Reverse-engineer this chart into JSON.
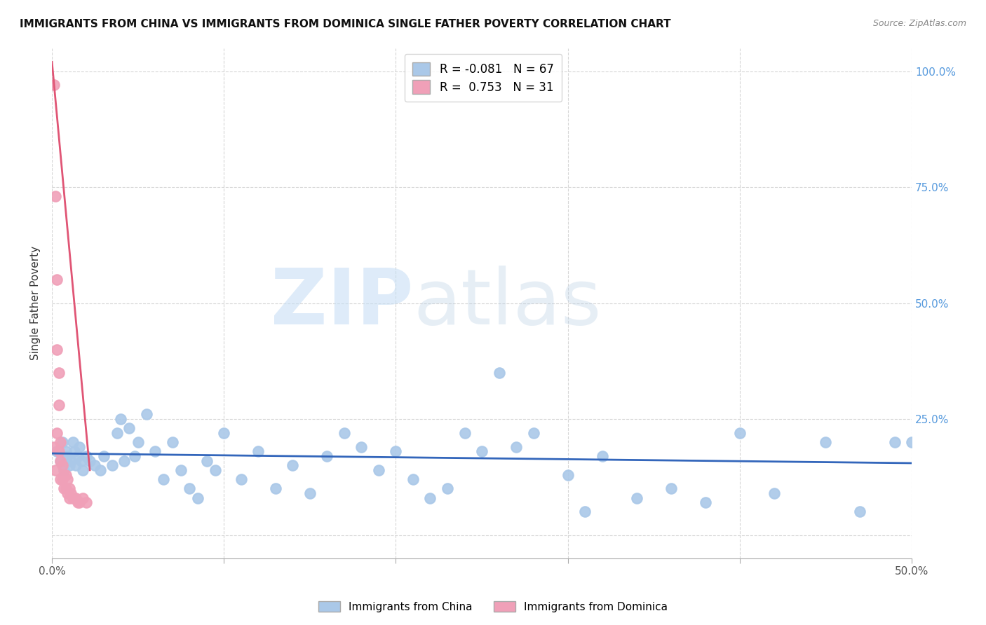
{
  "title": "IMMIGRANTS FROM CHINA VS IMMIGRANTS FROM DOMINICA SINGLE FATHER POVERTY CORRELATION CHART",
  "source": "Source: ZipAtlas.com",
  "ylabel": "Single Father Poverty",
  "xlim": [
    0.0,
    0.5
  ],
  "ylim": [
    -0.05,
    1.05
  ],
  "legend_r_china": "-0.081",
  "legend_n_china": "67",
  "legend_r_dominica": "0.753",
  "legend_n_dominica": "31",
  "china_color": "#aac8e8",
  "dominica_color": "#f0a0b8",
  "china_line_color": "#3366bb",
  "dominica_line_color": "#e05575",
  "china_x": [
    0.003,
    0.005,
    0.006,
    0.007,
    0.008,
    0.009,
    0.01,
    0.011,
    0.012,
    0.013,
    0.014,
    0.015,
    0.016,
    0.017,
    0.018,
    0.02,
    0.022,
    0.025,
    0.028,
    0.03,
    0.035,
    0.038,
    0.04,
    0.042,
    0.045,
    0.048,
    0.05,
    0.055,
    0.06,
    0.065,
    0.07,
    0.075,
    0.08,
    0.085,
    0.09,
    0.095,
    0.1,
    0.11,
    0.12,
    0.13,
    0.14,
    0.15,
    0.16,
    0.17,
    0.18,
    0.19,
    0.2,
    0.21,
    0.22,
    0.23,
    0.24,
    0.25,
    0.26,
    0.27,
    0.28,
    0.3,
    0.31,
    0.32,
    0.34,
    0.36,
    0.38,
    0.4,
    0.42,
    0.45,
    0.47,
    0.49,
    0.5
  ],
  "china_y": [
    0.18,
    0.16,
    0.2,
    0.14,
    0.18,
    0.17,
    0.15,
    0.16,
    0.2,
    0.18,
    0.15,
    0.17,
    0.19,
    0.16,
    0.14,
    0.17,
    0.16,
    0.15,
    0.14,
    0.17,
    0.15,
    0.22,
    0.25,
    0.16,
    0.23,
    0.17,
    0.2,
    0.26,
    0.18,
    0.12,
    0.2,
    0.14,
    0.1,
    0.08,
    0.16,
    0.14,
    0.22,
    0.12,
    0.18,
    0.1,
    0.15,
    0.09,
    0.17,
    0.22,
    0.19,
    0.14,
    0.18,
    0.12,
    0.08,
    0.1,
    0.22,
    0.18,
    0.35,
    0.19,
    0.22,
    0.13,
    0.05,
    0.17,
    0.08,
    0.1,
    0.07,
    0.22,
    0.09,
    0.2,
    0.05,
    0.2,
    0.2
  ],
  "dominica_x": [
    0.001,
    0.001,
    0.002,
    0.002,
    0.003,
    0.003,
    0.003,
    0.004,
    0.004,
    0.004,
    0.005,
    0.005,
    0.005,
    0.006,
    0.006,
    0.007,
    0.007,
    0.008,
    0.008,
    0.009,
    0.009,
    0.01,
    0.01,
    0.011,
    0.012,
    0.013,
    0.014,
    0.015,
    0.016,
    0.018,
    0.02
  ],
  "dominica_y": [
    0.97,
    0.19,
    0.73,
    0.14,
    0.55,
    0.4,
    0.22,
    0.35,
    0.28,
    0.18,
    0.2,
    0.16,
    0.12,
    0.15,
    0.12,
    0.13,
    0.1,
    0.13,
    0.1,
    0.12,
    0.09,
    0.1,
    0.08,
    0.09,
    0.08,
    0.08,
    0.08,
    0.07,
    0.07,
    0.08,
    0.07
  ],
  "dominica_line_x0": 0.0,
  "dominica_line_x1": 0.022,
  "dominica_line_y0": 1.02,
  "dominica_line_y1": 0.14,
  "china_line_x0": 0.0,
  "china_line_x1": 0.5,
  "china_line_y0": 0.176,
  "china_line_y1": 0.155
}
